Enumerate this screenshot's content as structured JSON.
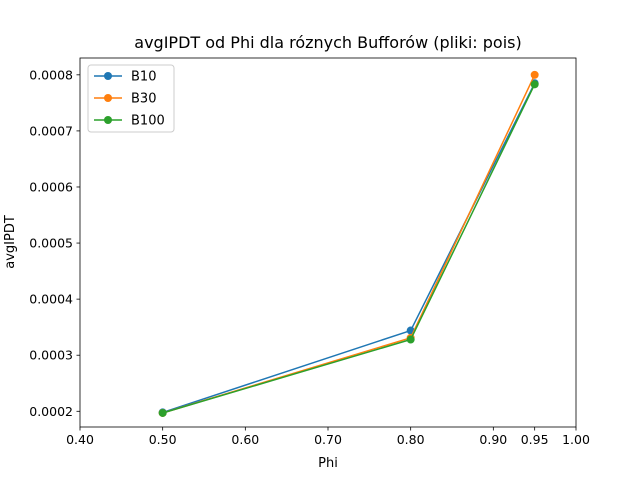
{
  "chart_data": {
    "type": "line",
    "title": "avgIPDT od Phi dla róznych Bufforów (pliki: pois)",
    "xlabel": "Phi",
    "ylabel": "avgIPDT",
    "xlim": [
      0.4,
      1.0
    ],
    "ylim": [
      0.000172,
      0.00083
    ],
    "x_ticks": [
      0.4,
      0.5,
      0.6,
      0.7,
      0.8,
      0.9,
      0.95,
      1.0
    ],
    "x_tick_labels": [
      "0.40",
      "0.50",
      "0.60",
      "0.70",
      "0.80",
      "0.90",
      "0.95",
      "1.00"
    ],
    "y_ticks": [
      0.0002,
      0.0003,
      0.0004,
      0.0005,
      0.0006,
      0.0007,
      0.0008
    ],
    "y_tick_labels": [
      "0.0002",
      "0.0003",
      "0.0004",
      "0.0005",
      "0.0006",
      "0.0007",
      "0.0008"
    ],
    "x": [
      0.5,
      0.8,
      0.95
    ],
    "series": [
      {
        "name": "B10",
        "color": "#1f77b4",
        "values": [
          0.000198,
          0.000344,
          0.000785
        ]
      },
      {
        "name": "B30",
        "color": "#ff7f0e",
        "values": [
          0.000197,
          0.000331,
          0.0008
        ]
      },
      {
        "name": "B100",
        "color": "#2ca02c",
        "values": [
          0.000197,
          0.000328,
          0.000783
        ]
      }
    ],
    "legend": "upper-left",
    "grid": false
  }
}
